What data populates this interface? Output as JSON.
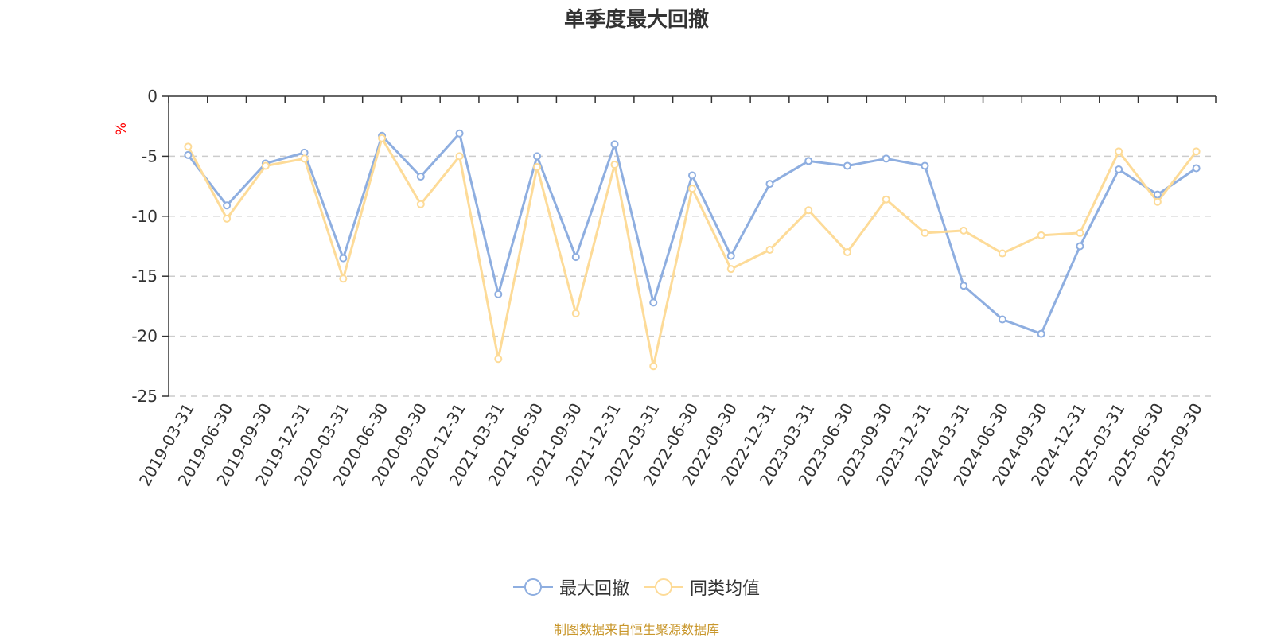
{
  "chart_data": {
    "type": "line",
    "title": "单季度最大回撤",
    "ylabel": "%",
    "xlabel": "",
    "ylim": [
      -25,
      0
    ],
    "yticks": [
      0,
      -5,
      -10,
      -15,
      -20,
      -25
    ],
    "ytick_labels": [
      "0",
      "-5",
      "-10",
      "-15",
      "-20",
      "-25"
    ],
    "grid": true,
    "legend_position": "bottom",
    "categories": [
      "2019-03-31",
      "2019-06-30",
      "2019-09-30",
      "2019-12-31",
      "2020-03-31",
      "2020-06-30",
      "2020-09-30",
      "2020-12-31",
      "2021-03-31",
      "2021-06-30",
      "2021-09-30",
      "2021-12-31",
      "2022-03-31",
      "2022-06-30",
      "2022-09-30",
      "2022-12-31",
      "2023-03-31",
      "2023-06-30",
      "2023-09-30",
      "2023-12-31",
      "2024-03-31",
      "2024-06-30",
      "2024-09-30",
      "2024-12-31",
      "2025-03-31",
      "2025-06-30",
      "2025-09-30"
    ],
    "series": [
      {
        "name": "最大回撤",
        "color": "#8eaee0",
        "values": [
          -4.9,
          -9.1,
          -5.6,
          -4.7,
          -13.5,
          -3.3,
          -6.7,
          -3.1,
          -16.5,
          -5.0,
          -13.4,
          -4.0,
          -17.2,
          -6.6,
          -13.3,
          -7.3,
          -5.4,
          -5.8,
          -5.2,
          -5.8,
          -15.8,
          -18.6,
          -19.8,
          -12.5,
          -6.1,
          -8.2,
          -6.0
        ]
      },
      {
        "name": "同类均值",
        "color": "#fddb98",
        "values": [
          -4.2,
          -10.2,
          -5.8,
          -5.2,
          -15.2,
          -3.5,
          -9.0,
          -5.0,
          -21.9,
          -5.9,
          -18.1,
          -5.7,
          -22.5,
          -7.7,
          -14.4,
          -12.8,
          -9.5,
          -13.0,
          -8.6,
          -11.4,
          -11.2,
          -13.1,
          -11.6,
          -11.4,
          -4.6,
          -8.8,
          -4.6
        ]
      }
    ]
  },
  "source_text": "制图数据来自恒生聚源数据库",
  "colors": {
    "axis": "#333333",
    "grid": "#cccccc",
    "ylabel": "#ff0000",
    "source": "#c8962a"
  }
}
